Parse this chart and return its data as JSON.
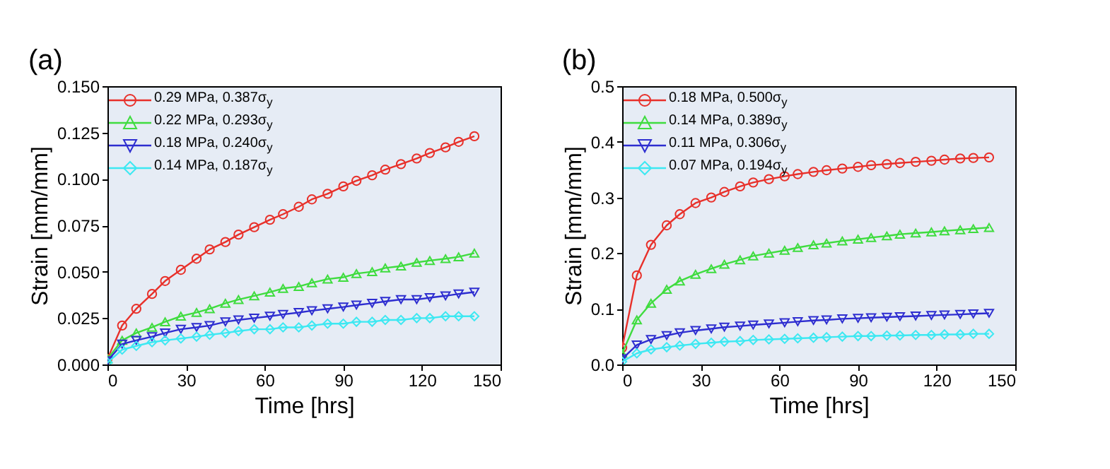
{
  "chart_data": [
    {
      "type": "line",
      "title": "(a)",
      "xlabel": "Time [hrs]",
      "ylabel": "Strain [mm/mm]",
      "xlim": [
        0,
        150
      ],
      "xticks": [
        0,
        30,
        60,
        90,
        120,
        150
      ],
      "ylim": [
        0,
        0.15
      ],
      "yticks": [
        {
          "value": 0,
          "label": "0.000"
        },
        {
          "value": 0.025,
          "label": "0.025"
        },
        {
          "value": 0.05,
          "label": "0.050"
        },
        {
          "value": 0.075,
          "label": "0.075"
        },
        {
          "value": 0.1,
          "label": "0.100"
        },
        {
          "value": 0.125,
          "label": "0.125"
        },
        {
          "value": 0.15,
          "label": "0.150"
        }
      ],
      "legend": "top left",
      "grid": false,
      "line_style": "solid",
      "x": [
        0,
        5.6,
        11,
        17,
        22,
        28,
        34,
        39,
        45,
        50,
        56,
        62,
        67,
        73,
        78,
        84,
        90,
        95,
        101,
        106,
        112,
        118,
        123,
        129,
        134,
        140
      ],
      "series": [
        {
          "name": "0.29 MPa, 0.387σ$_{y}$",
          "color": "#e8302a",
          "marker": "circle",
          "values": [
            0.003,
            0.021,
            0.03,
            0.038,
            0.045,
            0.051,
            0.057,
            0.062,
            0.066,
            0.07,
            0.074,
            0.078,
            0.081,
            0.085,
            0.089,
            0.092,
            0.096,
            0.099,
            0.102,
            0.105,
            0.108,
            0.111,
            0.114,
            0.117,
            0.12,
            0.123
          ]
        },
        {
          "name": "0.22 MPa, 0.293σ$_{y}$",
          "color": "#3fdc3f",
          "marker": "triangle",
          "values": [
            0.003,
            0.013,
            0.017,
            0.02,
            0.023,
            0.026,
            0.028,
            0.03,
            0.033,
            0.035,
            0.037,
            0.039,
            0.041,
            0.042,
            0.044,
            0.046,
            0.047,
            0.049,
            0.05,
            0.052,
            0.053,
            0.055,
            0.056,
            0.057,
            0.058,
            0.06
          ]
        },
        {
          "name": "0.18 MPa, 0.240σ$_{y}$",
          "color": "#2e2ed0",
          "marker": "triangle-down",
          "values": [
            0.002,
            0.011,
            0.013,
            0.015,
            0.017,
            0.019,
            0.02,
            0.021,
            0.023,
            0.024,
            0.025,
            0.026,
            0.027,
            0.028,
            0.029,
            0.03,
            0.031,
            0.032,
            0.033,
            0.034,
            0.035,
            0.035,
            0.036,
            0.037,
            0.038,
            0.039
          ]
        },
        {
          "name": "0.14 MPa, 0.187σ$_{y}$",
          "color": "#3de8f2",
          "marker": "diamond",
          "values": [
            0.001,
            0.008,
            0.01,
            0.012,
            0.013,
            0.014,
            0.015,
            0.016,
            0.017,
            0.018,
            0.019,
            0.019,
            0.02,
            0.02,
            0.021,
            0.022,
            0.022,
            0.023,
            0.023,
            0.024,
            0.024,
            0.025,
            0.025,
            0.026,
            0.026,
            0.026
          ]
        }
      ]
    },
    {
      "type": "line",
      "title": "(b)",
      "xlabel": "Time [hrs]",
      "ylabel": "Strain [mm/mm]",
      "xlim": [
        0,
        150
      ],
      "xticks": [
        0,
        30,
        60,
        90,
        120,
        150
      ],
      "ylim": [
        0,
        0.5
      ],
      "yticks": [
        {
          "value": 0,
          "label": "0.0"
        },
        {
          "value": 0.1,
          "label": "0.1"
        },
        {
          "value": 0.2,
          "label": "0.2"
        },
        {
          "value": 0.3,
          "label": "0.3"
        },
        {
          "value": 0.4,
          "label": "0.4"
        },
        {
          "value": 0.5,
          "label": "0.5"
        }
      ],
      "legend": "top left",
      "grid": false,
      "line_style": "solid",
      "x": [
        0,
        5.6,
        11,
        17,
        22,
        28,
        34,
        39,
        45,
        50,
        56,
        62,
        67,
        73,
        78,
        84,
        90,
        95,
        101,
        106,
        112,
        118,
        123,
        129,
        134,
        140
      ],
      "series": [
        {
          "name": "0.18 MPa, 0.500σ$_{y}$",
          "color": "#e8302a",
          "marker": "circle",
          "values": [
            0.03,
            0.16,
            0.215,
            0.25,
            0.27,
            0.29,
            0.3,
            0.31,
            0.32,
            0.327,
            0.333,
            0.338,
            0.342,
            0.346,
            0.349,
            0.352,
            0.355,
            0.358,
            0.36,
            0.362,
            0.364,
            0.366,
            0.368,
            0.37,
            0.371,
            0.372
          ]
        },
        {
          "name": "0.14 MPa, 0.389σ$_{y}$",
          "color": "#3fdc3f",
          "marker": "triangle",
          "values": [
            0.02,
            0.08,
            0.11,
            0.135,
            0.15,
            0.162,
            0.172,
            0.18,
            0.188,
            0.195,
            0.2,
            0.205,
            0.21,
            0.215,
            0.218,
            0.222,
            0.225,
            0.228,
            0.231,
            0.234,
            0.236,
            0.238,
            0.24,
            0.242,
            0.244,
            0.246
          ]
        },
        {
          "name": "0.11 MPa, 0.306σ$_{y}$",
          "color": "#2e2ed0",
          "marker": "triangle-down",
          "values": [
            0.01,
            0.035,
            0.045,
            0.052,
            0.057,
            0.061,
            0.064,
            0.067,
            0.069,
            0.071,
            0.073,
            0.075,
            0.077,
            0.079,
            0.08,
            0.082,
            0.083,
            0.084,
            0.085,
            0.086,
            0.087,
            0.088,
            0.089,
            0.09,
            0.091,
            0.092
          ]
        },
        {
          "name": "0.07 MPa, 0.194σ$_{y}$",
          "color": "#3de8f2",
          "marker": "diamond",
          "values": [
            0.005,
            0.02,
            0.027,
            0.031,
            0.034,
            0.037,
            0.039,
            0.041,
            0.042,
            0.044,
            0.045,
            0.046,
            0.047,
            0.048,
            0.049,
            0.05,
            0.051,
            0.051,
            0.052,
            0.052,
            0.053,
            0.053,
            0.054,
            0.054,
            0.055,
            0.055
          ]
        }
      ]
    }
  ]
}
